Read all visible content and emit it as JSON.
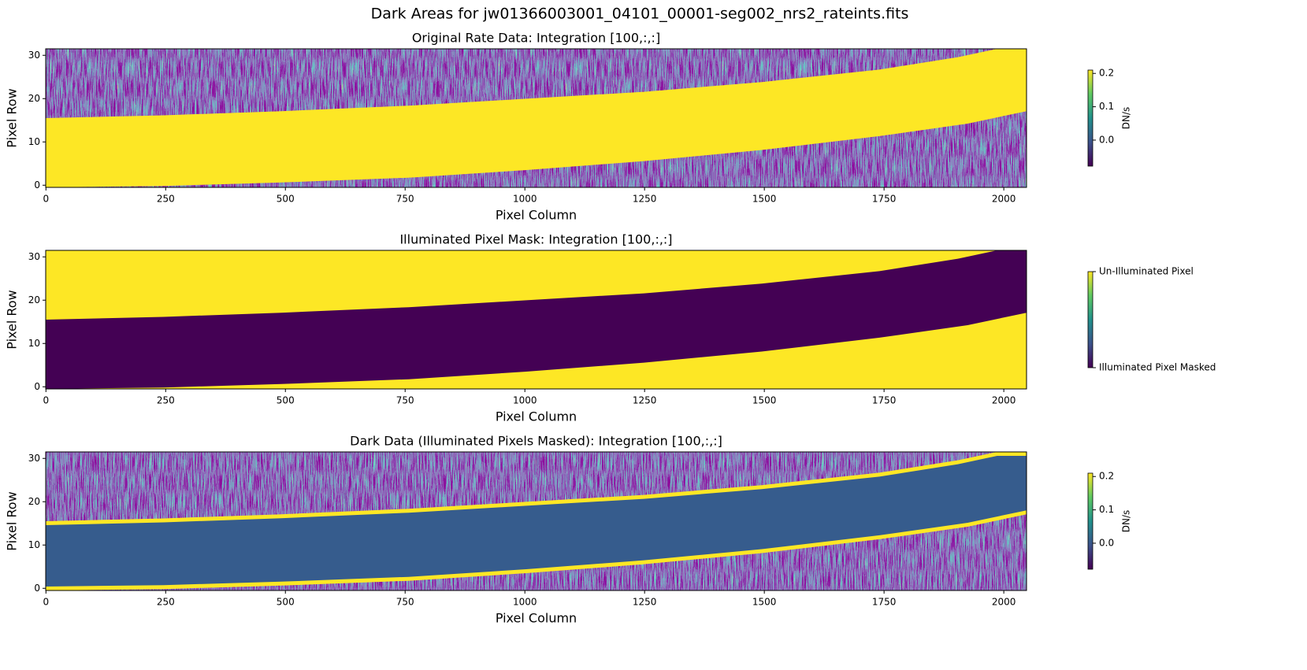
{
  "title": "Dark Areas for jw01366003001_04101_00001-seg002_nrs2_rateints.fits",
  "chart_data": [
    {
      "type": "image",
      "title": "Original Rate Data: Integration [100,:,:]",
      "xlabel": "Pixel Column",
      "ylabel": "Pixel Row",
      "xlim": [
        -0.5,
        2047.5
      ],
      "ylim": [
        -0.5,
        31.5
      ],
      "xticks": [
        0,
        250,
        500,
        750,
        1000,
        1250,
        1500,
        1750,
        2000
      ],
      "yticks": [
        0,
        10,
        20,
        30
      ],
      "colorbar": {
        "label": "DN/s",
        "clim": [
          -0.078,
          0.21
        ],
        "ticks": [
          {
            "value": 0,
            "label": "0.0"
          },
          0.1,
          0.2
        ]
      }
    },
    {
      "type": "image",
      "title": "Illuminated Pixel Mask: Integration [100,:,:]",
      "xlabel": "Pixel Column",
      "ylabel": "Pixel Row",
      "xlim": [
        -0.5,
        2047.5
      ],
      "ylim": [
        -0.5,
        31.5
      ],
      "xticks": [
        0,
        250,
        500,
        750,
        1000,
        1250,
        1500,
        1750,
        2000
      ],
      "yticks": [
        0,
        10,
        20,
        30
      ],
      "colorbar": {
        "clim": [
          0,
          1
        ],
        "ticks": [
          {
            "value": 0,
            "label": "Illuminated Pixel Masked"
          },
          {
            "value": 1,
            "label": "Un-Illuminated Pixel"
          }
        ]
      }
    },
    {
      "type": "image",
      "title": "Dark Data (Illuminated Pixels Masked): Integration [100,:,:]",
      "xlabel": "Pixel Column",
      "ylabel": "Pixel Row",
      "xlim": [
        -0.5,
        2047.5
      ],
      "ylim": [
        -0.5,
        31.5
      ],
      "xticks": [
        0,
        250,
        500,
        750,
        1000,
        1250,
        1500,
        1750,
        2000
      ],
      "yticks": [
        0,
        10,
        20,
        30
      ],
      "colorbar": {
        "label": "DN/s",
        "clim": [
          -0.078,
          0.21
        ],
        "ticks": [
          {
            "value": 0,
            "label": "0.0"
          },
          0.1,
          0.2
        ]
      }
    }
  ]
}
